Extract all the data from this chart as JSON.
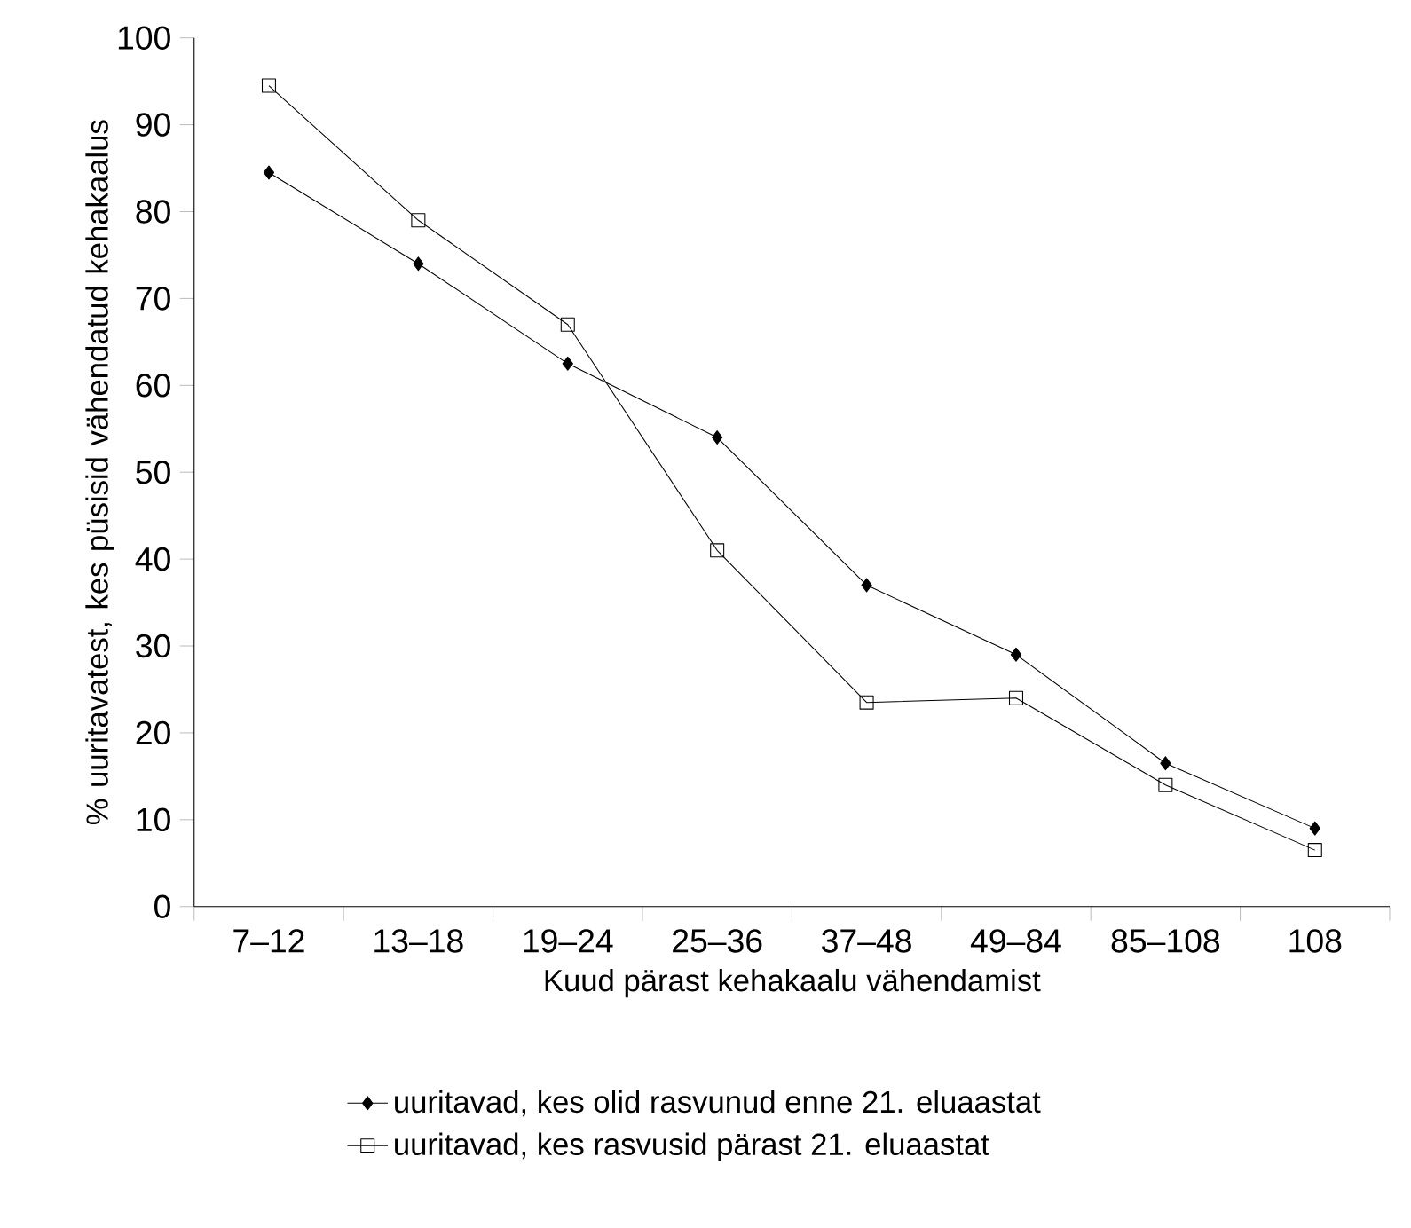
{
  "chart_data": {
    "type": "line",
    "xlabel": "Kuud pärast kehakaalu vähendamist",
    "ylabel": "% uuritavatest, kes püsisid vähendatud kehakaalus",
    "categories": [
      "7–12",
      "13–18",
      "19–24",
      "25–36",
      "37–48",
      "49–84",
      "85–108",
      "108"
    ],
    "series": [
      {
        "name": "uuritavad, kes olid rasvunud enne 21. eluaastat",
        "color": "#000000",
        "marker": "diamond",
        "values": [
          84.5,
          74,
          62.5,
          54,
          37,
          29,
          16.5,
          9
        ]
      },
      {
        "name": "uuritavad, kes rasvusid pärast 21. eluaastat",
        "color": "#000000",
        "marker": "square",
        "values": [
          94.5,
          79,
          67,
          41,
          23.5,
          24,
          14,
          6.5
        ]
      }
    ],
    "ylim": [
      0,
      100
    ],
    "yticks": [
      0,
      10,
      20,
      30,
      40,
      50,
      60,
      70,
      80,
      90,
      100
    ],
    "legend": "bottom",
    "line_style": "solid"
  }
}
